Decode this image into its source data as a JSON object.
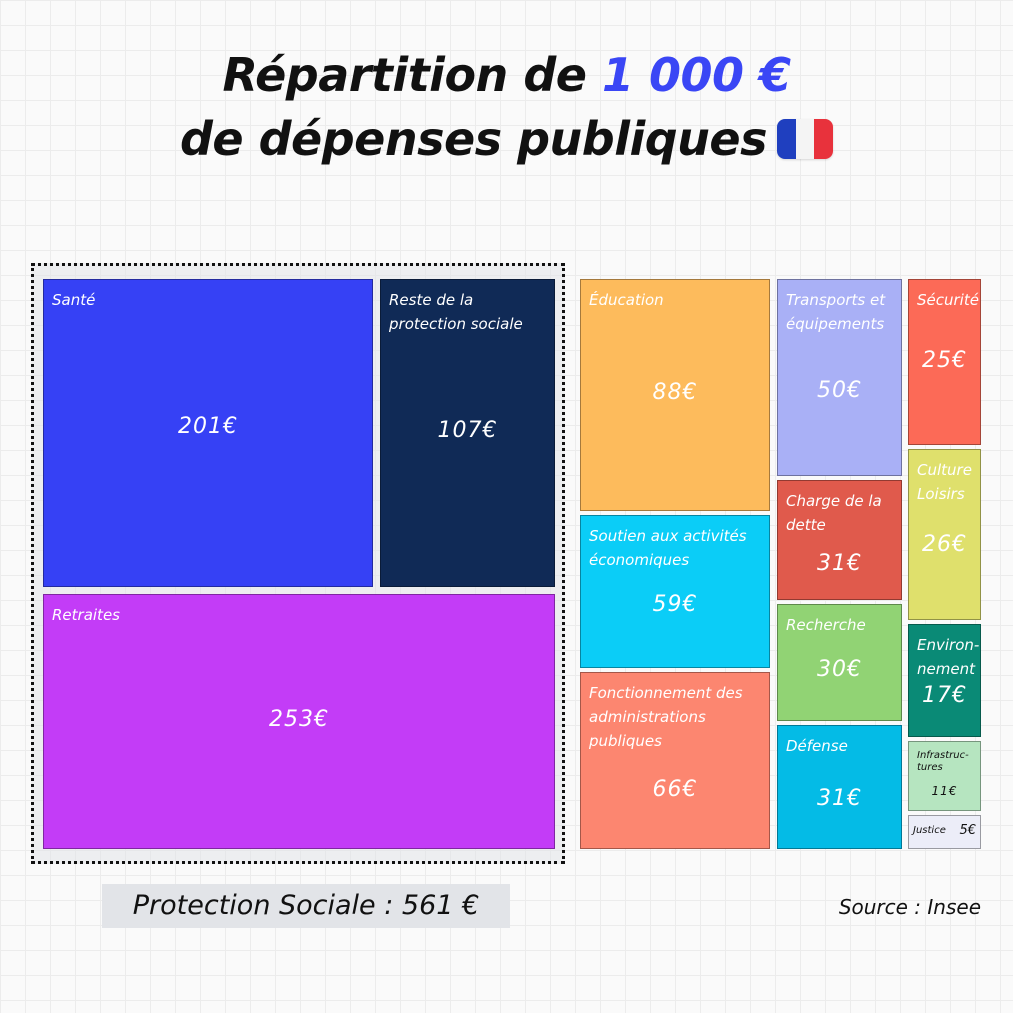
{
  "title": {
    "line1_prefix": "Répartition de",
    "line1_accent": "1 000 €",
    "line2": "de dépenses publiques"
  },
  "colors": {
    "accent": "#3a46f5",
    "sante": "#3641f5",
    "reste": "#102a56",
    "retraites": "#c33cf7",
    "education": "#fdbb5c",
    "soutien": "#0bcdf7",
    "fonctionnement": "#fc8670",
    "transports": "#a9b0f6",
    "charge": "#e05a4c",
    "recherche": "#91d374",
    "defense": "#04bbe6",
    "securite": "#fc6a57",
    "culture": "#dfe06c",
    "environnement": "#0a8a76",
    "infrastructures": "#b6e5c0",
    "justice": "#ecedf8"
  },
  "chart_data": {
    "type": "treemap",
    "unit": "€",
    "total": 1000,
    "items": [
      {
        "key": "sante",
        "label": "Santé",
        "value": 201,
        "display": "201€",
        "group": "Protection Sociale"
      },
      {
        "key": "reste",
        "label": "Reste de la protection sociale",
        "value": 107,
        "display": "107€",
        "group": "Protection Sociale"
      },
      {
        "key": "retraites",
        "label": "Retraites",
        "value": 253,
        "display": "253€",
        "group": "Protection Sociale"
      },
      {
        "key": "education",
        "label": "Éducation",
        "value": 88,
        "display": "88€"
      },
      {
        "key": "soutien",
        "label": "Soutien aux activités économiques",
        "value": 59,
        "display": "59€"
      },
      {
        "key": "fonctionnement",
        "label": "Fonctionnement des administrations publiques",
        "value": 66,
        "display": "66€"
      },
      {
        "key": "transports",
        "label": "Transports et équipements",
        "value": 50,
        "display": "50€"
      },
      {
        "key": "charge",
        "label": "Charge de la dette",
        "value": 31,
        "display": "31€"
      },
      {
        "key": "recherche",
        "label": "Recherche",
        "value": 30,
        "display": "30€"
      },
      {
        "key": "defense",
        "label": "Défense",
        "value": 31,
        "display": "31€"
      },
      {
        "key": "securite",
        "label": "Sécurité",
        "value": 25,
        "display": "25€"
      },
      {
        "key": "culture",
        "label": "Culture Loisirs",
        "value": 26,
        "display": "26€"
      },
      {
        "key": "environnement",
        "label": "Environ-nement",
        "value": 17,
        "display": "17€"
      },
      {
        "key": "infrastructures",
        "label": "Infrastruc-tures",
        "value": 11,
        "display": "11€"
      },
      {
        "key": "justice",
        "label": "Justice",
        "value": 5,
        "display": "5€"
      }
    ],
    "group_total": {
      "label": "Protection Sociale : 561 €",
      "value": 561
    }
  },
  "footer": {
    "protection_sociale": "Protection Sociale : 561 €",
    "source": "Source : Insee"
  }
}
